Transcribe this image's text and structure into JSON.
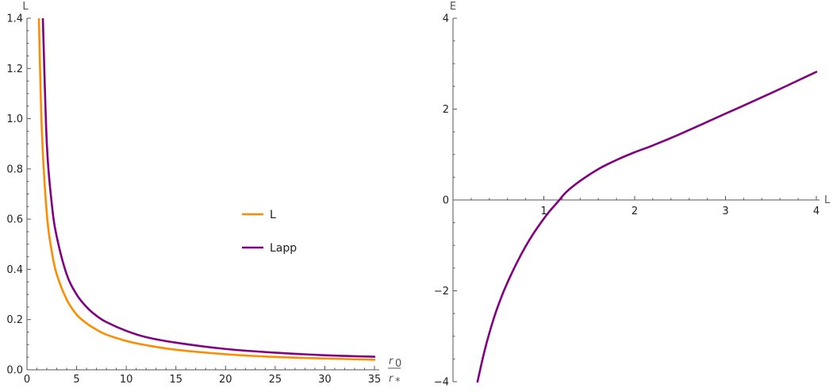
{
  "chart_data": [
    {
      "type": "line",
      "title": "",
      "xlabel_num": "r",
      "xlabel_num_sub": "0",
      "xlabel_den": "r",
      "xlabel_den_sub": "*",
      "ylabel": "L",
      "xlim": [
        0,
        35
      ],
      "ylim": [
        0,
        1.4
      ],
      "xticks": [
        0,
        5,
        10,
        15,
        20,
        25,
        30,
        35
      ],
      "xtick_labels": [
        "0",
        "5",
        "10",
        "15",
        "20",
        "25",
        "30",
        "35"
      ],
      "yticks": [
        0,
        0.2,
        0.4,
        0.6,
        0.8,
        1.0,
        1.2,
        1.4
      ],
      "ytick_labels": [
        "0.0",
        "0.2",
        "0.4",
        "0.6",
        "0.8",
        "1.0",
        "1.2",
        "1.4"
      ],
      "legend": "center-right",
      "grid": false,
      "series": [
        {
          "name": "L",
          "color": "#ff8c00",
          "x": [
            1.2,
            1.5,
            2,
            2.5,
            3,
            4,
            5,
            6,
            7,
            8,
            10,
            12,
            15,
            20,
            25,
            30,
            35
          ],
          "y": [
            1.4,
            0.95,
            0.62,
            0.47,
            0.38,
            0.28,
            0.22,
            0.185,
            0.16,
            0.14,
            0.115,
            0.098,
            0.08,
            0.062,
            0.051,
            0.045,
            0.04
          ]
        },
        {
          "name": "Lapp",
          "color": "#800080",
          "x": [
            1.6,
            2,
            2.5,
            3,
            4,
            5,
            6,
            7,
            8,
            10,
            12,
            15,
            20,
            25,
            30,
            35
          ],
          "y": [
            1.4,
            0.9,
            0.66,
            0.53,
            0.38,
            0.3,
            0.25,
            0.215,
            0.19,
            0.155,
            0.13,
            0.108,
            0.083,
            0.068,
            0.058,
            0.052
          ]
        }
      ]
    },
    {
      "type": "line",
      "title": "",
      "xlabel": "L",
      "ylabel": "E",
      "xlim": [
        0,
        4
      ],
      "ylim": [
        -4,
        4
      ],
      "xticks": [
        1,
        2,
        3,
        4
      ],
      "xtick_labels": [
        "1",
        "2",
        "3",
        "4"
      ],
      "yticks": [
        -4,
        -2,
        0,
        2,
        4
      ],
      "ytick_labels": [
        "−4",
        "−2",
        "0",
        "2",
        "4"
      ],
      "grid": false,
      "series": [
        {
          "color": "#800080",
          "x": [
            0.27,
            0.35,
            0.45,
            0.55,
            0.65,
            0.75,
            0.85,
            0.95,
            1.05,
            1.15,
            1.25,
            1.4,
            1.6,
            1.8,
            2.0,
            2.2,
            2.5,
            3.0,
            3.5,
            4.0
          ],
          "y": [
            -4.0,
            -3.3,
            -2.6,
            -2.05,
            -1.6,
            -1.2,
            -0.85,
            -0.55,
            -0.28,
            -0.05,
            0.18,
            0.42,
            0.68,
            0.88,
            1.05,
            1.2,
            1.45,
            1.9,
            2.35,
            2.82
          ]
        }
      ]
    }
  ]
}
